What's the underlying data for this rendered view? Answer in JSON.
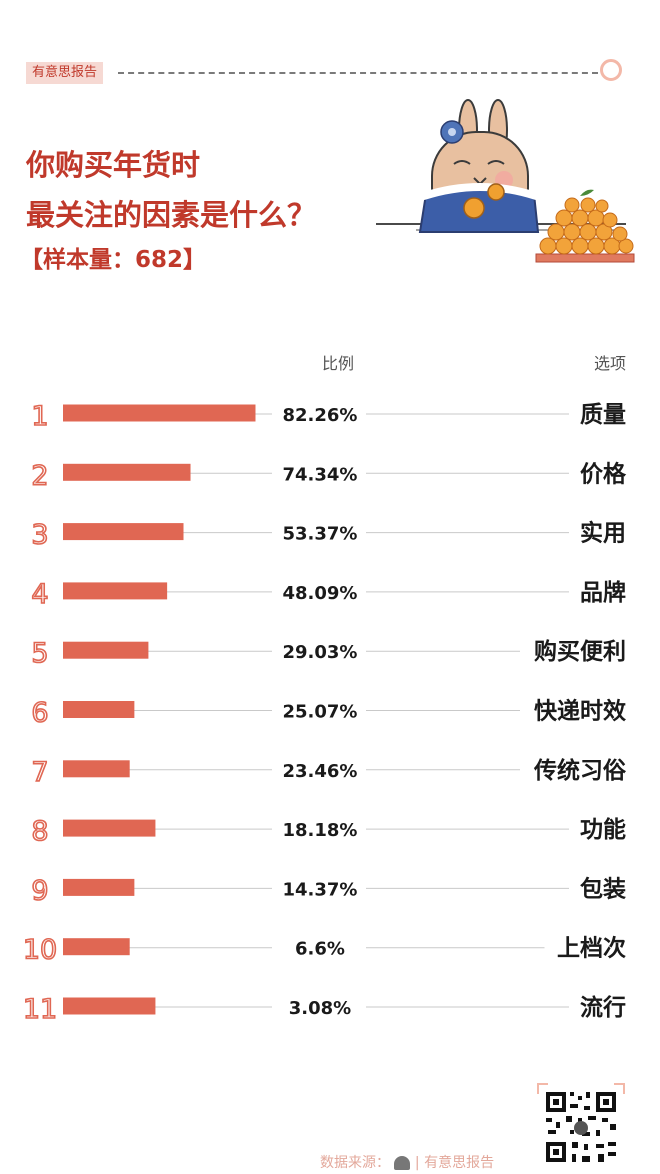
{
  "brand_tag": "有意思报告",
  "title_lines": [
    "你购买年货时",
    "最关注的因素是什么？"
  ],
  "sample_label": "【样本量：682】",
  "header": {
    "ratio": "比例",
    "option": "选项"
  },
  "source": "数据来源：",
  "source_brand": "有意思报告",
  "colors": {
    "bar": "#e06753",
    "title": "#c0392b",
    "rank": "#e06753",
    "line": "#c9c9c9",
    "text": "#1a1a1a"
  },
  "chart_data": {
    "type": "bar",
    "orientation": "horizontal",
    "xlabel": "比例",
    "ylabel": "选项",
    "ranks": [
      "1",
      "2",
      "3",
      "4",
      "5",
      "6",
      "7",
      "8",
      "9",
      "10",
      "11"
    ],
    "categories": [
      "质量",
      "价格",
      "实用",
      "品牌",
      "购买便利",
      "快递时效",
      "传统习俗",
      "功能",
      "包装",
      "上档次",
      "流行"
    ],
    "value_labels": [
      "82.26%",
      "74.34%",
      "53.37%",
      "48.09%",
      "29.03%",
      "25.07%",
      "23.46%",
      "18.18%",
      "14.37%",
      "6.6%",
      "3.08%"
    ],
    "values": [
      82.26,
      74.34,
      53.37,
      48.09,
      29.03,
      25.07,
      23.46,
      18.18,
      14.37,
      6.6,
      3.08
    ],
    "bar_lengths": [
      82.26,
      54.5,
      51.5,
      44.5,
      36.5,
      30.5,
      28.5,
      39.5,
      30.5,
      28.5,
      39.5
    ]
  }
}
